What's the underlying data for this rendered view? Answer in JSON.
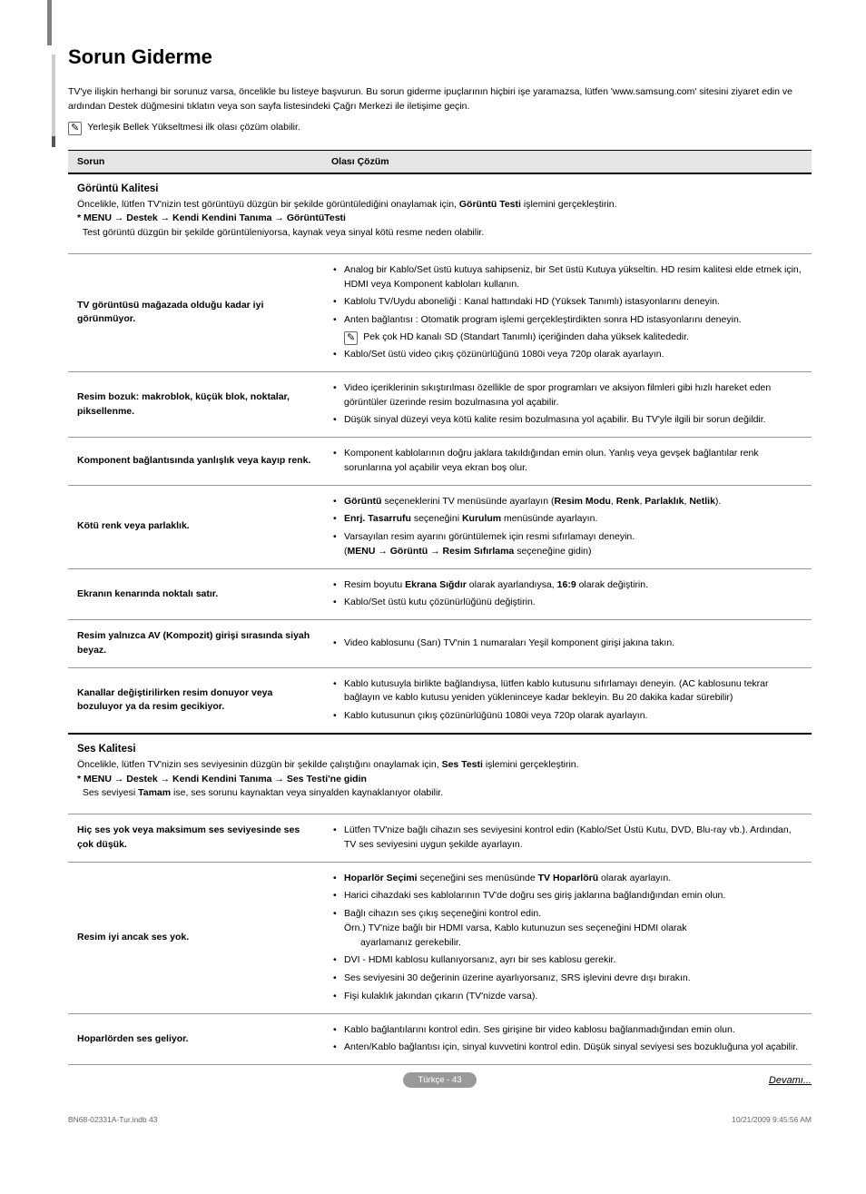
{
  "title": "Sorun Giderme",
  "intro": "TV'ye ilişkin herhangi bir sorunuz varsa, öncelikle bu listeye başvurun. Bu sorun giderme ipuçlarının hiçbiri işe yaramazsa, lütfen 'www.samsung.com' sitesini ziyaret edin ve ardından Destek düğmesini tıklatın veya son sayfa listesindeki Çağrı Merkezi ile iletişime geçin.",
  "top_note": "Yerleşik Bellek Yükseltmesi ilk olası çözüm olabilir.",
  "header_sorun": "Sorun",
  "header_cozum": "Olası Çözüm",
  "sections": [
    {
      "title": "Görüntü Kalitesi",
      "desc_pre": "Öncelikle, lütfen TV'nizin test görüntüyü düzgün bir şekilde görüntülediğini onaylamak için, ",
      "desc_bold": "Görüntü Testi",
      "desc_post": " işlemini gerçekleştirin.",
      "menu_path": "* MENU → Destek → Kendi Kendini Tanıma → GörüntüTesti",
      "desc_after": "Test görüntü düzgün bir şekilde görüntüleniyorsa, kaynak veya sinyal kötü resme neden olabilir.",
      "rows": [
        {
          "problem": "TV görüntüsü mağazada olduğu kadar iyi görünmüyor.",
          "solutions": [
            "Analog bir Kablo/Set üstü kutuya sahipseniz, bir Set üstü Kutuya yükseltin. HD resim kalitesi elde etmek için, HDMI veya Komponent kabloları kullanın.",
            "Kablolu TV/Uydu aboneliği : Kanal hattındaki HD (Yüksek Tanımlı) istasyonlarını deneyin.",
            "Anten bağlantısı : Otomatik program işlemi gerçekleştirdikten sonra HD istasyonlarını deneyin.",
            "__NOTE__Pek çok HD kanalı SD (Standart Tanımlı) içeriğinden daha yüksek kalitededir.",
            "Kablo/Set üstü video çıkış çözünürlüğünü 1080i veya 720p olarak ayarlayın."
          ]
        },
        {
          "problem": "Resim bozuk: makroblok, küçük blok, noktalar, piksellenme.",
          "solutions": [
            "Video içeriklerinin sıkıştırılması özellikle de spor programları ve aksiyon filmleri gibi hızlı hareket eden görüntüler üzerinde resim bozulmasına yol açabilir.",
            "Düşük sinyal düzeyi veya kötü kalite resim bozulmasına yol açabilir. Bu TV'yle ilgili bir sorun değildir."
          ]
        },
        {
          "problem": "Komponent bağlantısında yanlışlık veya kayıp renk.",
          "solutions": [
            "Komponent kablolarının doğru jaklara takıldığından emin olun. Yanlış veya gevşek bağlantılar renk sorunlarına yol açabilir veya ekran boş olur."
          ]
        },
        {
          "problem": "Kötü renk veya parlaklık.",
          "solutions": [
            "__HTML__<b>Görüntü</b> seçeneklerini TV menüsünde ayarlayın (<b>Resim Modu</b>, <b>Renk</b>, <b>Parlaklık</b>, <b>Netlik</b>).",
            "__HTML__<b>Enrj. Tasarrufu</b> seçeneğini <b>Kurulum</b> menüsünde ayarlayın.",
            "__HTML__Varsayılan resim ayarını görüntülemek için resmi sıfırlamayı deneyin.<br>(<b>MENU → Görüntü → Resim Sıfırlama</b> seçeneğine gidin)"
          ]
        },
        {
          "problem": "Ekranın kenarında noktalı satır.",
          "solutions": [
            "__HTML__Resim boyutu <b>Ekrana Sığdır</b> olarak ayarlandıysa, <b>16:9</b> olarak değiştirin.",
            "Kablo/Set üstü kutu çözünürlüğünü değiştirin."
          ]
        },
        {
          "problem": "Resim yalnızca AV (Kompozit) girişi sırasında siyah beyaz.",
          "solutions": [
            "Video kablosunu (Sarı) TV'nin 1 numaraları Yeşil komponent girişi jakına takın."
          ]
        },
        {
          "problem": "Kanallar değiştirilirken resim donuyor veya bozuluyor ya da resim gecikiyor.",
          "solutions": [
            "Kablo kutusuyla birlikte bağlandıysa, lütfen kablo kutusunu sıfırlamayı deneyin. (AC kablosunu tekrar bağlayın ve kablo kutusu yeniden yükleninceye kadar bekleyin. Bu 20 dakika kadar sürebilir)",
            "Kablo kutusunun çıkış çözünürlüğünü 1080i veya 720p olarak ayarlayın."
          ]
        }
      ]
    },
    {
      "title": "Ses Kalitesi",
      "desc_pre": "Öncelikle, lütfen TV'nizin ses seviyesinin düzgün bir şekilde çalıştığını onaylamak için, ",
      "desc_bold": "Ses Testi",
      "desc_post": " işlemini gerçekleştirin.",
      "menu_path": "* MENU → Destek → Kendi Kendini Tanıma → Ses Testi'ne gidin",
      "desc_after_html": "Ses seviyesi <b>Tamam</b> ise, ses sorunu kaynaktan veya sinyalden kaynaklanıyor olabilir.",
      "rows": [
        {
          "problem": "Hiç ses yok veya maksimum ses seviyesinde ses çok düşük.",
          "solutions": [
            "Lütfen TV'nize bağlı cihazın ses seviyesini kontrol edin (Kablo/Set Üstü Kutu, DVD, Blu-ray vb.). Ardından, TV ses seviyesini uygun şekilde ayarlayın."
          ]
        },
        {
          "problem": "Resim iyi ancak ses yok.",
          "solutions": [
            "__HTML__<b>Hoparlör Seçimi</b> seçeneğini ses menüsünde <b>TV Hoparlörü</b> olarak ayarlayın.",
            "Harici cihazdaki ses kablolarının TV'de doğru ses giriş jaklarına bağlandığından emin olun.",
            "__HTML__Bağlı cihazın ses çıkış seçeneğini kontrol edin.<br><span style=\"padding-left:0\">Örn.) TV'nize bağlı bir HDMI varsa, Kablo kutunuzun ses seçeneğini HDMI olarak</span><br><span style=\"padding-left:18px\">ayarlamanız gerekebilir.</span>",
            "DVI - HDMI kablosu kullanıyorsanız, ayrı bir ses kablosu gerekir.",
            "Ses seviyesini 30 değerinin üzerine ayarlıyorsanız, SRS işlevini devre dışı bırakın.",
            "Fişi kulaklık jakından çıkarın (TV'nizde varsa)."
          ]
        },
        {
          "problem": "Hoparlörden ses geliyor.",
          "solutions": [
            "Kablo bağlantılarını kontrol edin. Ses girişine bir video kablosu bağlanmadığından emin olun.",
            "Anten/Kablo bağlantısı için, sinyal kuvvetini kontrol edin. Düşük sinyal seviyesi ses bozukluğuna yol açabilir."
          ]
        }
      ]
    }
  ],
  "footer_page": "Türkçe - 43",
  "continued": "Devamı...",
  "print_left": "BN68-02331A-Tur.indb   43",
  "print_right": "10/21/2009   9:45:56 AM"
}
